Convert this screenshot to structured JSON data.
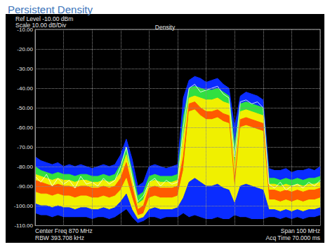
{
  "chart_data": {
    "type": "line",
    "title": "Persistent Density",
    "subtitle": "Density",
    "annotations": [
      "Ref Level -10.00 dBm",
      "Scale 10.00 dB/Div",
      "Center Freq 870 MHz",
      "RBW 393.708 kHz",
      "Span 100 MHz",
      "Acq Time 70.000 ms"
    ],
    "x": [
      820,
      822,
      824,
      826,
      828,
      830,
      832,
      834,
      836,
      838,
      840,
      842,
      844,
      846,
      848,
      850,
      852,
      854,
      856,
      858,
      860,
      862,
      864,
      866,
      868,
      870,
      872,
      874,
      876,
      878,
      880,
      882,
      884,
      886,
      888,
      890,
      892,
      894,
      896,
      898,
      900,
      902,
      904,
      906,
      908,
      910,
      912,
      914,
      916,
      918,
      920
    ],
    "series": [
      {
        "type": "area",
        "color": "#0a2cff",
        "values": [
          -75,
          -77,
          -78,
          -79,
          -78,
          -80,
          -79,
          -80,
          -79,
          -80,
          -81,
          -80,
          -79,
          -80,
          -79,
          -74,
          -66,
          -76,
          -90,
          -88,
          -80,
          -79,
          -80,
          -81,
          -80,
          -79,
          -45,
          -36,
          -34,
          -35,
          -37,
          -36,
          -35,
          -38,
          -40,
          -60,
          -44,
          -42,
          -43,
          -44,
          -46,
          -81,
          -82,
          -82,
          -81,
          -83,
          -82,
          -82,
          -81,
          -82,
          -80
        ]
      },
      {
        "type": "area",
        "color": "#30e040",
        "values": [
          -80,
          -82,
          -83,
          -84,
          -83,
          -84,
          -84,
          -85,
          -84,
          -84,
          -85,
          -85,
          -84,
          -85,
          -84,
          -79,
          -70,
          -82,
          -95,
          -93,
          -85,
          -84,
          -85,
          -85,
          -85,
          -84,
          -55,
          -40,
          -39,
          -40,
          -41,
          -41,
          -40,
          -42,
          -44,
          -70,
          -48,
          -47,
          -48,
          -49,
          -50,
          -86,
          -86,
          -87,
          -86,
          -87,
          -86,
          -87,
          -86,
          -86,
          -85
        ]
      },
      {
        "type": "area",
        "color": "#f0f000",
        "values": [
          -84,
          -85,
          -86,
          -87,
          -86,
          -87,
          -87,
          -88,
          -87,
          -87,
          -88,
          -88,
          -87,
          -88,
          -87,
          -83,
          -74,
          -86,
          -99,
          -97,
          -88,
          -87,
          -88,
          -88,
          -88,
          -87,
          -65,
          -45,
          -44,
          -45,
          -46,
          -46,
          -45,
          -47,
          -48,
          -80,
          -52,
          -51,
          -52,
          -53,
          -54,
          -89,
          -89,
          -90,
          -89,
          -90,
          -89,
          -90,
          -89,
          -89,
          -88
        ]
      },
      {
        "type": "area",
        "color": "#ff5a00",
        "values": [
          -87,
          -88,
          -89,
          -90,
          -89,
          -90,
          -90,
          -91,
          -90,
          -90,
          -91,
          -91,
          -90,
          -91,
          -90,
          -86,
          -78,
          -90,
          -102,
          -100,
          -91,
          -90,
          -91,
          -91,
          -91,
          -90,
          -75,
          -48,
          -47,
          -50,
          -52,
          -52,
          -51,
          -53,
          -54,
          -88,
          -56,
          -55,
          -56,
          -57,
          -58,
          -92,
          -92,
          -93,
          -92,
          -93,
          -92,
          -93,
          -92,
          -92,
          -91
        ]
      },
      {
        "type": "area",
        "color": "#f0f000",
        "values": [
          -93,
          -94,
          -94,
          -95,
          -94,
          -95,
          -95,
          -96,
          -95,
          -95,
          -96,
          -96,
          -95,
          -96,
          -95,
          -92,
          -86,
          -96,
          -105,
          -104,
          -96,
          -95,
          -96,
          -96,
          -96,
          -95,
          -82,
          -52,
          -51,
          -54,
          -56,
          -56,
          -55,
          -57,
          -58,
          -92,
          -60,
          -59,
          -60,
          -61,
          -62,
          -97,
          -97,
          -98,
          -97,
          -98,
          -97,
          -98,
          -97,
          -97,
          -96
        ]
      },
      {
        "type": "area",
        "color": "#0a2cff",
        "values": [
          -99,
          -100,
          -100,
          -101,
          -100,
          -101,
          -101,
          -102,
          -101,
          -101,
          -102,
          -102,
          -101,
          -102,
          -101,
          -98,
          -94,
          -102,
          -107,
          -106,
          -102,
          -101,
          -102,
          -102,
          -102,
          -101,
          -96,
          -88,
          -86,
          -88,
          -90,
          -90,
          -89,
          -91,
          -92,
          -99,
          -90,
          -89,
          -90,
          -91,
          -92,
          -102,
          -102,
          -103,
          -102,
          -103,
          -102,
          -103,
          -102,
          -102,
          -101
        ]
      },
      {
        "type": "area",
        "color": "#000000",
        "values": [
          -104,
          -105,
          -105,
          -106,
          -105,
          -106,
          -106,
          -106,
          -106,
          -106,
          -107,
          -106,
          -106,
          -107,
          -106,
          -104,
          -102,
          -106,
          -109,
          -108,
          -106,
          -106,
          -107,
          -106,
          -106,
          -106,
          -104,
          -106,
          -105,
          -106,
          -107,
          -107,
          -106,
          -107,
          -107,
          -105,
          -106,
          -106,
          -107,
          -107,
          -107,
          -106,
          -106,
          -107,
          -106,
          -107,
          -106,
          -107,
          -106,
          -106,
          -105
        ]
      },
      {
        "type": "line",
        "color": "#ffffff",
        "values": [
          -85,
          -88,
          -84,
          -90,
          -86,
          -89,
          -87,
          -91,
          -85,
          -89,
          -88,
          -90,
          -86,
          -89,
          -87,
          -80,
          -70,
          -85,
          -98,
          -95,
          -88,
          -86,
          -90,
          -87,
          -89,
          -88,
          -60,
          -40,
          -38,
          -42,
          -41,
          -40,
          -39,
          -43,
          -45,
          -75,
          -47,
          -46,
          -48,
          -47,
          -50,
          -89,
          -91,
          -88,
          -92,
          -90,
          -89,
          -91,
          -88,
          -90,
          -87
        ]
      }
    ],
    "xlim": [
      820,
      920
    ],
    "xticks": [
      820,
      830,
      840,
      850,
      860,
      870,
      880,
      890,
      900,
      910,
      920
    ],
    "ylim": [
      -110,
      -10
    ],
    "yticks": [
      {
        "value": -110,
        "label": "-110.00"
      },
      {
        "value": -100,
        "label": "-100.00"
      },
      {
        "value": -90,
        "label": "-90.00"
      },
      {
        "value": -80,
        "label": "-80.00"
      },
      {
        "value": -70,
        "label": "-70.00"
      },
      {
        "value": -60,
        "label": "-60.00"
      },
      {
        "value": -50,
        "label": "-50.00"
      },
      {
        "value": -40,
        "label": "-40.00"
      },
      {
        "value": -30,
        "label": "-30.00"
      },
      {
        "value": -20,
        "label": "-20.00"
      },
      {
        "value": -10,
        "label": "-10.00"
      }
    ],
    "grid": true,
    "tick_labels": "y"
  }
}
